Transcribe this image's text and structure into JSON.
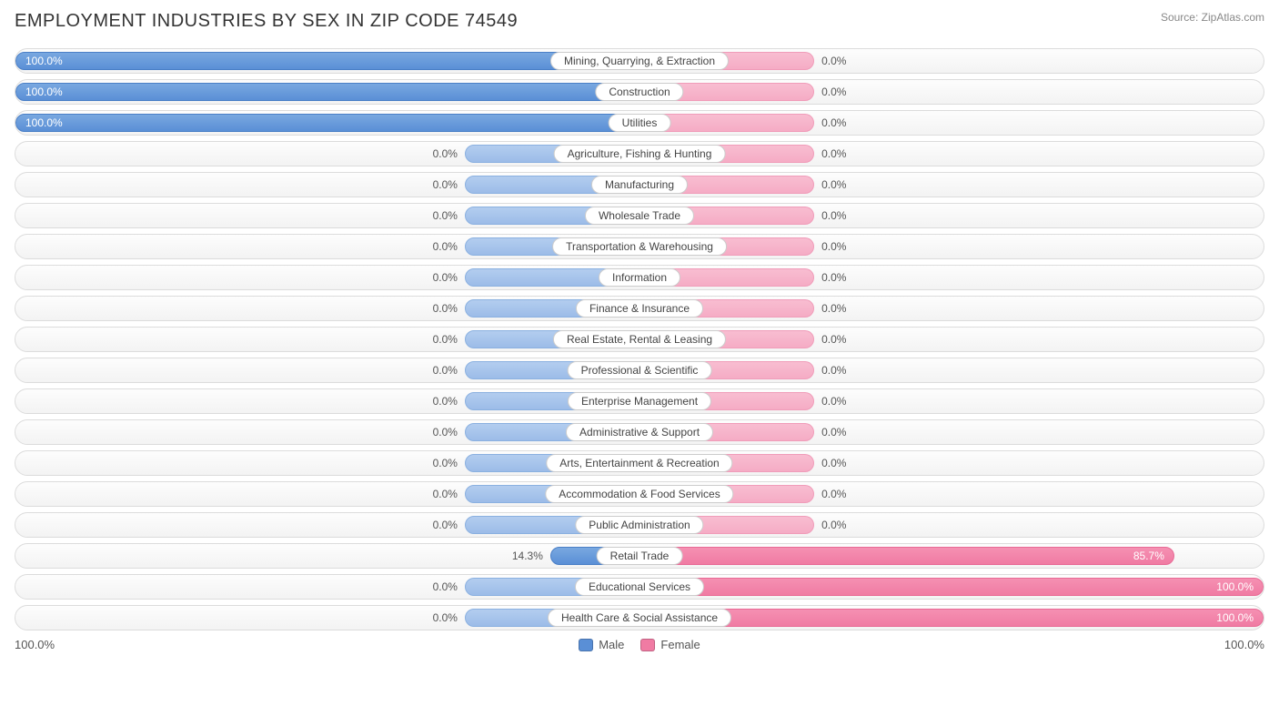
{
  "title": "EMPLOYMENT INDUSTRIES BY SEX IN ZIP CODE 74549",
  "source": "Source: ZipAtlas.com",
  "axis_left": "100.0%",
  "axis_right": "100.0%",
  "legend": {
    "male": "Male",
    "female": "Female"
  },
  "colors": {
    "male_bar": "#5a8fd6",
    "male_stub": "#9cbce8",
    "female_bar": "#f07ba3",
    "female_stub": "#f5acc5",
    "row_bg_top": "#fdfdfd",
    "row_bg_bot": "#f3f3f3",
    "row_border": "#dcdcdc",
    "text": "#444",
    "title_color": "#333",
    "source_color": "#888"
  },
  "chart": {
    "type": "diverging-bar",
    "stub_width_pct": 28,
    "rows": [
      {
        "label": "Mining, Quarrying, & Extraction",
        "male": 100.0,
        "female": 0.0
      },
      {
        "label": "Construction",
        "male": 100.0,
        "female": 0.0
      },
      {
        "label": "Utilities",
        "male": 100.0,
        "female": 0.0
      },
      {
        "label": "Agriculture, Fishing & Hunting",
        "male": 0.0,
        "female": 0.0
      },
      {
        "label": "Manufacturing",
        "male": 0.0,
        "female": 0.0
      },
      {
        "label": "Wholesale Trade",
        "male": 0.0,
        "female": 0.0
      },
      {
        "label": "Transportation & Warehousing",
        "male": 0.0,
        "female": 0.0
      },
      {
        "label": "Information",
        "male": 0.0,
        "female": 0.0
      },
      {
        "label": "Finance & Insurance",
        "male": 0.0,
        "female": 0.0
      },
      {
        "label": "Real Estate, Rental & Leasing",
        "male": 0.0,
        "female": 0.0
      },
      {
        "label": "Professional & Scientific",
        "male": 0.0,
        "female": 0.0
      },
      {
        "label": "Enterprise Management",
        "male": 0.0,
        "female": 0.0
      },
      {
        "label": "Administrative & Support",
        "male": 0.0,
        "female": 0.0
      },
      {
        "label": "Arts, Entertainment & Recreation",
        "male": 0.0,
        "female": 0.0
      },
      {
        "label": "Accommodation & Food Services",
        "male": 0.0,
        "female": 0.0
      },
      {
        "label": "Public Administration",
        "male": 0.0,
        "female": 0.0
      },
      {
        "label": "Retail Trade",
        "male": 14.3,
        "female": 85.7
      },
      {
        "label": "Educational Services",
        "male": 0.0,
        "female": 100.0
      },
      {
        "label": "Health Care & Social Assistance",
        "male": 0.0,
        "female": 100.0
      }
    ]
  }
}
